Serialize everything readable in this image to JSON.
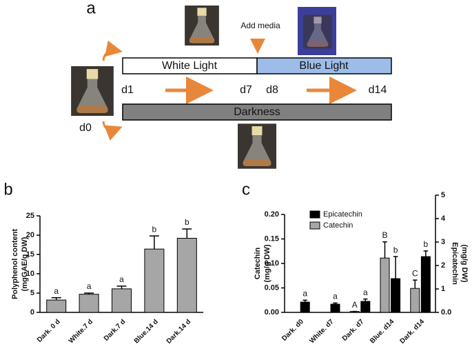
{
  "panel_labels": [
    "a",
    "b",
    "c"
  ],
  "diagram": {
    "add_media": "Add media",
    "white_light": "White Light",
    "blue_light": "Blue Light",
    "darkness": "Darkness",
    "days": [
      "d0",
      "d1",
      "d7",
      "d8",
      "d14"
    ]
  },
  "chart_data": [
    {
      "type": "bar",
      "ylabel": [
        "Polyphenol content",
        "(mgGAE/g DW)"
      ],
      "categories": [
        "Dark. 0 d",
        "White.7 d",
        "Dark.7 d",
        "Blue.14 d",
        "Dark.14 d"
      ],
      "series": [
        {
          "color": "#a6a6a6",
          "values": [
            3.2,
            4.7,
            6.1,
            16.4,
            19.2
          ],
          "errors": [
            0.6,
            0.3,
            0.7,
            3.4,
            2.4
          ],
          "letters": [
            "a",
            "a",
            "a",
            "b",
            "b"
          ]
        }
      ],
      "ylim": [
        0,
        25
      ],
      "yticks": [
        0,
        5,
        10,
        15,
        20,
        25
      ]
    },
    {
      "type": "bar",
      "ylabel": [
        "Catechin",
        "(mg/g DW)"
      ],
      "y2label": [
        "Epicatechin",
        "(mg/g DW)"
      ],
      "categories": [
        "Dark. d0",
        "White. d7",
        "Dark. d7",
        "Blue. d14",
        "Dark. d14"
      ],
      "series": [
        {
          "name": "Catechin",
          "color": "#a6a6a6",
          "values": [
            null,
            null,
            0.002,
            0.111,
            0.049
          ],
          "errors": [
            null,
            null,
            0,
            0.033,
            0.017
          ],
          "letters": [
            null,
            null,
            "A",
            "B",
            "C"
          ]
        },
        {
          "name": "Epicatechin",
          "color": "#000000",
          "axis": "y2",
          "values": [
            0.44,
            0.35,
            0.47,
            1.44,
            2.38
          ],
          "errors": [
            0.08,
            0.05,
            0.1,
            0.94,
            0.24
          ],
          "letters": [
            "a",
            "a",
            "a",
            "b",
            "b"
          ]
        }
      ],
      "ylim": [
        0,
        0.2
      ],
      "yticks": [
        {
          "value": 0,
          "label": "0.00"
        },
        0.05,
        {
          "value": 0.1,
          "label": "0.10"
        },
        0.15,
        {
          "value": 0.2,
          "label": "0.20"
        }
      ],
      "y2lim": [
        0,
        5
      ],
      "y2ticks": [
        {
          "value": 0,
          "label": "0.0"
        },
        1,
        2,
        3,
        4,
        5
      ],
      "legend": "top-left"
    }
  ]
}
